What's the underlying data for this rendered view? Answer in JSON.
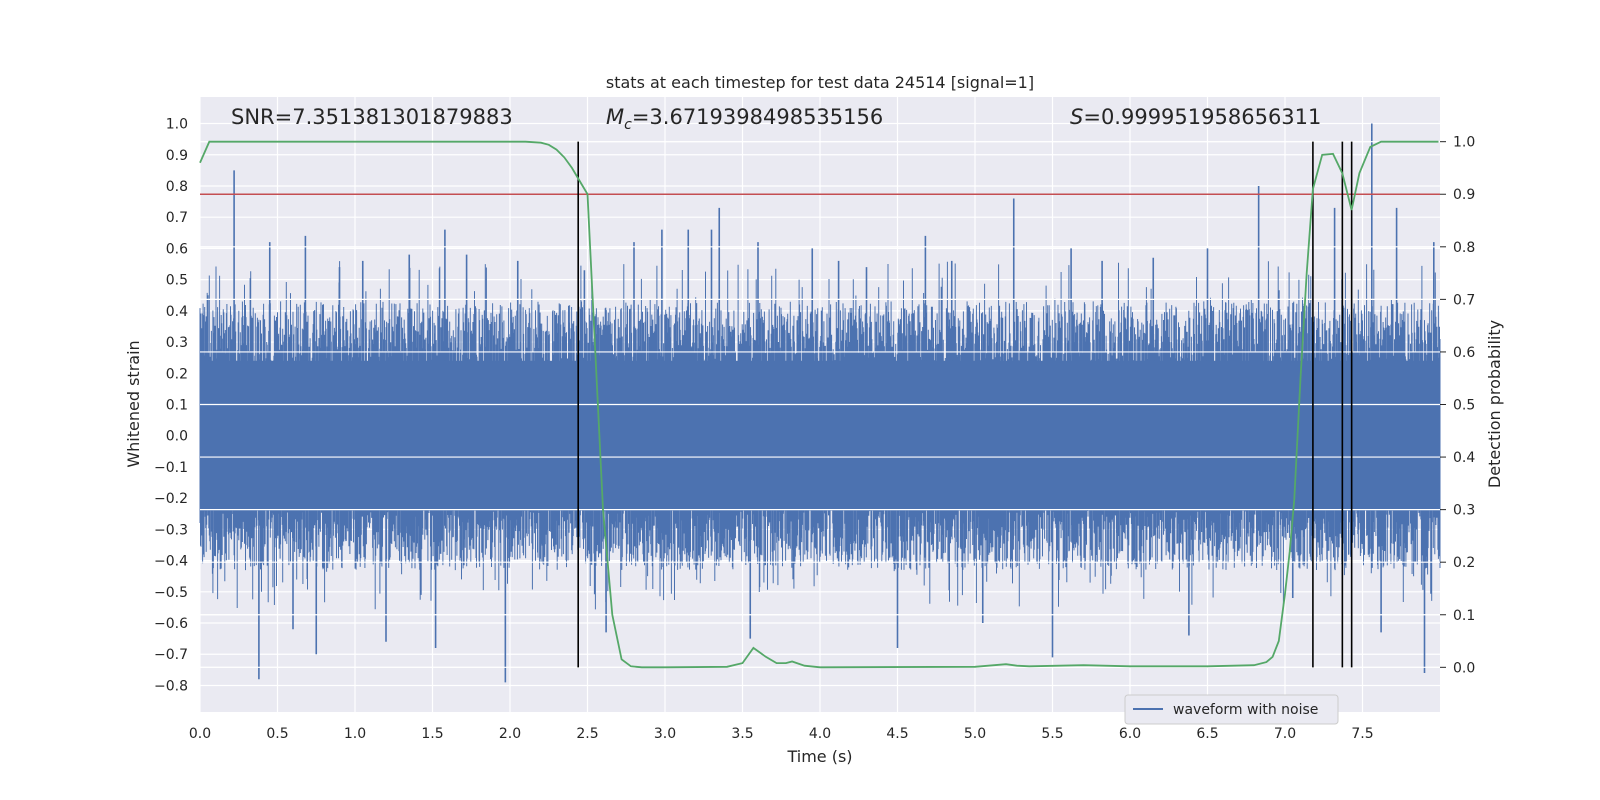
{
  "chart_data": {
    "type": "line",
    "title": "stats at each timestep for test data 24514 [signal=1]",
    "xlabel": "Time (s)",
    "ylabel": "Whitened strain",
    "y2label": "Detection probability",
    "xlim": [
      0.0,
      8.0
    ],
    "ylim": [
      -0.885,
      1.085
    ],
    "y2lim": [
      -0.085,
      1.085
    ],
    "xticks": [
      "0.0",
      "0.5",
      "1.0",
      "1.5",
      "2.0",
      "2.5",
      "3.0",
      "3.5",
      "4.0",
      "4.5",
      "5.0",
      "5.5",
      "6.0",
      "6.5",
      "7.0",
      "7.5"
    ],
    "yticks": [
      "−0.8",
      "−0.7",
      "−0.6",
      "−0.5",
      "−0.4",
      "−0.3",
      "−0.2",
      "−0.1",
      "0.0",
      "0.1",
      "0.2",
      "0.3",
      "0.4",
      "0.5",
      "0.6",
      "0.7",
      "0.8",
      "0.9",
      "1.0"
    ],
    "y2ticks": [
      "0.0",
      "0.1",
      "0.2",
      "0.3",
      "0.4",
      "0.5",
      "0.6",
      "0.7",
      "0.8",
      "0.9",
      "1.0"
    ],
    "annotations": {
      "snr": "SNR=7.351381301879883",
      "mc_symbol": "M",
      "mc_sub": "c",
      "mc_value": "=3.6719398498535156",
      "s_symbol": "S",
      "s_value": "=0.999951958656311"
    },
    "threshold": {
      "value": 0.9,
      "axis": "y2"
    },
    "event_lines": [
      2.44,
      7.18,
      7.37,
      7.43
    ],
    "legend": {
      "label": "waveform with noise",
      "placement": "lower-right"
    },
    "series": [
      {
        "name": "waveform with noise",
        "axis": "y",
        "description": "dense whitened strain noise, mostly within ±0.4 with spikes",
        "spikes": [
          [
            0.05,
            0.45
          ],
          [
            0.22,
            0.85
          ],
          [
            0.38,
            -0.78
          ],
          [
            0.45,
            0.62
          ],
          [
            0.6,
            -0.62
          ],
          [
            0.68,
            0.64
          ],
          [
            0.75,
            -0.7
          ],
          [
            0.9,
            0.54
          ],
          [
            1.05,
            0.56
          ],
          [
            1.2,
            -0.66
          ],
          [
            1.35,
            0.58
          ],
          [
            1.52,
            -0.68
          ],
          [
            1.58,
            0.66
          ],
          [
            1.72,
            0.58
          ],
          [
            1.97,
            -0.79
          ],
          [
            2.05,
            0.56
          ],
          [
            2.48,
            0.53
          ],
          [
            2.62,
            -0.63
          ],
          [
            2.8,
            0.62
          ],
          [
            2.98,
            0.66
          ],
          [
            3.15,
            0.66
          ],
          [
            3.3,
            0.66
          ],
          [
            3.35,
            0.73
          ],
          [
            3.55,
            -0.65
          ],
          [
            3.6,
            0.62
          ],
          [
            3.95,
            0.6
          ],
          [
            4.12,
            0.56
          ],
          [
            4.3,
            0.54
          ],
          [
            4.5,
            -0.68
          ],
          [
            4.68,
            0.64
          ],
          [
            4.85,
            0.56
          ],
          [
            5.05,
            -0.6
          ],
          [
            5.25,
            0.76
          ],
          [
            5.5,
            -0.71
          ],
          [
            5.62,
            0.6
          ],
          [
            5.82,
            0.56
          ],
          [
            6.15,
            0.57
          ],
          [
            6.38,
            -0.64
          ],
          [
            6.5,
            0.6
          ],
          [
            6.83,
            0.8
          ],
          [
            7.05,
            -0.52
          ],
          [
            7.32,
            0.73
          ],
          [
            7.56,
            1.0
          ],
          [
            7.62,
            -0.63
          ],
          [
            7.72,
            0.73
          ],
          [
            7.9,
            -0.76
          ],
          [
            7.96,
            0.62
          ]
        ]
      },
      {
        "name": "detection probability",
        "axis": "y2",
        "x": [
          0.0,
          0.06,
          0.5,
          1.0,
          1.5,
          2.0,
          2.1,
          2.2,
          2.25,
          2.3,
          2.35,
          2.4,
          2.44,
          2.5,
          2.55,
          2.6,
          2.66,
          2.72,
          2.78,
          2.85,
          3.0,
          3.4,
          3.5,
          3.57,
          3.65,
          3.72,
          3.78,
          3.82,
          3.9,
          4.0,
          5.0,
          5.2,
          5.27,
          5.35,
          5.7,
          6.0,
          6.2,
          6.5,
          6.8,
          6.88,
          6.92,
          6.96,
          7.0,
          7.03,
          7.06,
          7.1,
          7.14,
          7.18,
          7.24,
          7.31,
          7.37,
          7.43,
          7.48,
          7.55,
          7.62,
          7.7,
          7.8,
          7.99
        ],
        "values": [
          0.96,
          1.0,
          1.0,
          1.0,
          1.0,
          1.0,
          1.0,
          0.998,
          0.994,
          0.985,
          0.97,
          0.95,
          0.93,
          0.9,
          0.6,
          0.3,
          0.1,
          0.015,
          0.002,
          0.0,
          0.0,
          0.001,
          0.008,
          0.037,
          0.02,
          0.008,
          0.008,
          0.011,
          0.003,
          0.0,
          0.001,
          0.006,
          0.003,
          0.002,
          0.004,
          0.002,
          0.002,
          0.002,
          0.004,
          0.01,
          0.02,
          0.05,
          0.14,
          0.22,
          0.32,
          0.55,
          0.75,
          0.91,
          0.975,
          0.977,
          0.94,
          0.87,
          0.94,
          0.99,
          1.0,
          1.0,
          1.0,
          1.0
        ]
      }
    ]
  }
}
